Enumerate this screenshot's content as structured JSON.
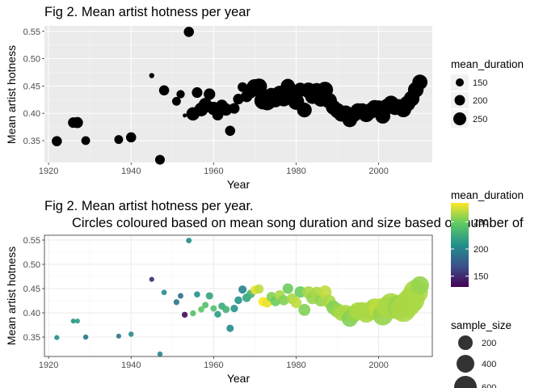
{
  "chart_data": [
    {
      "type": "scatter",
      "title": "Fig 2. Mean artist hotness per year",
      "xlabel": "Year",
      "ylabel": "Mean artist hotness",
      "xlim": [
        1919,
        2013
      ],
      "ylim": [
        0.31,
        0.56
      ],
      "xticks": [
        1920,
        1940,
        1960,
        1980,
        2000
      ],
      "yticks": [
        0.35,
        0.4,
        0.45,
        0.5,
        0.55
      ],
      "xtick_labels": [
        "1920",
        "1940",
        "1960",
        "1980",
        "2000"
      ],
      "ytick_labels": [
        "0.35",
        "0.40",
        "0.45",
        "0.50",
        "0.55"
      ],
      "theme": "grey panel with white grid",
      "legend": {
        "title": "mean_duration",
        "position": "right",
        "entries": [
          {
            "label": "150",
            "value": 150
          },
          {
            "label": "200",
            "value": 200
          },
          {
            "label": "250",
            "value": 250
          }
        ]
      },
      "points": [
        {
          "x": 1922,
          "y": 0.349,
          "duration": 205
        },
        {
          "x": 1926,
          "y": 0.383,
          "duration": 210
        },
        {
          "x": 1927,
          "y": 0.383,
          "duration": 215
        },
        {
          "x": 1929,
          "y": 0.35,
          "duration": 190
        },
        {
          "x": 1937,
          "y": 0.352,
          "duration": 190
        },
        {
          "x": 1940,
          "y": 0.356,
          "duration": 205
        },
        {
          "x": 1945,
          "y": 0.469,
          "duration": 150
        },
        {
          "x": 1947,
          "y": 0.315,
          "duration": 200
        },
        {
          "x": 1948,
          "y": 0.442,
          "duration": 205
        },
        {
          "x": 1951,
          "y": 0.422,
          "duration": 190
        },
        {
          "x": 1952,
          "y": 0.435,
          "duration": 185
        },
        {
          "x": 1953,
          "y": 0.396,
          "duration": 135
        },
        {
          "x": 1954,
          "y": 0.549,
          "duration": 205
        },
        {
          "x": 1955,
          "y": 0.399,
          "duration": 240
        },
        {
          "x": 1956,
          "y": 0.438,
          "duration": 210
        },
        {
          "x": 1957,
          "y": 0.407,
          "duration": 245
        },
        {
          "x": 1958,
          "y": 0.416,
          "duration": 240
        },
        {
          "x": 1959,
          "y": 0.435,
          "duration": 220
        },
        {
          "x": 1960,
          "y": 0.409,
          "duration": 240
        },
        {
          "x": 1961,
          "y": 0.397,
          "duration": 215
        },
        {
          "x": 1962,
          "y": 0.414,
          "duration": 225
        },
        {
          "x": 1963,
          "y": 0.407,
          "duration": 230
        },
        {
          "x": 1964,
          "y": 0.368,
          "duration": 205
        },
        {
          "x": 1965,
          "y": 0.409,
          "duration": 210
        },
        {
          "x": 1966,
          "y": 0.426,
          "duration": 210
        },
        {
          "x": 1967,
          "y": 0.448,
          "duration": 200
        },
        {
          "x": 1968,
          "y": 0.431,
          "duration": 220
        },
        {
          "x": 1969,
          "y": 0.439,
          "duration": 230
        },
        {
          "x": 1970,
          "y": 0.447,
          "duration": 280
        },
        {
          "x": 1971,
          "y": 0.449,
          "duration": 270
        },
        {
          "x": 1972,
          "y": 0.423,
          "duration": 285
        },
        {
          "x": 1973,
          "y": 0.421,
          "duration": 280
        },
        {
          "x": 1974,
          "y": 0.433,
          "duration": 255
        },
        {
          "x": 1975,
          "y": 0.424,
          "duration": 250
        },
        {
          "x": 1976,
          "y": 0.436,
          "duration": 265
        },
        {
          "x": 1977,
          "y": 0.426,
          "duration": 255
        },
        {
          "x": 1978,
          "y": 0.45,
          "duration": 250
        },
        {
          "x": 1979,
          "y": 0.429,
          "duration": 265
        },
        {
          "x": 1980,
          "y": 0.421,
          "duration": 270
        },
        {
          "x": 1981,
          "y": 0.443,
          "duration": 250
        },
        {
          "x": 1982,
          "y": 0.406,
          "duration": 255
        },
        {
          "x": 1983,
          "y": 0.442,
          "duration": 265
        },
        {
          "x": 1984,
          "y": 0.431,
          "duration": 260
        },
        {
          "x": 1985,
          "y": 0.441,
          "duration": 265
        },
        {
          "x": 1986,
          "y": 0.426,
          "duration": 260
        },
        {
          "x": 1987,
          "y": 0.443,
          "duration": 270
        },
        {
          "x": 1988,
          "y": 0.423,
          "duration": 265
        },
        {
          "x": 1989,
          "y": 0.411,
          "duration": 255
        },
        {
          "x": 1990,
          "y": 0.405,
          "duration": 260
        },
        {
          "x": 1991,
          "y": 0.399,
          "duration": 265
        },
        {
          "x": 1992,
          "y": 0.4,
          "duration": 265
        },
        {
          "x": 1993,
          "y": 0.388,
          "duration": 255
        },
        {
          "x": 1994,
          "y": 0.398,
          "duration": 260
        },
        {
          "x": 1995,
          "y": 0.404,
          "duration": 265
        },
        {
          "x": 1996,
          "y": 0.404,
          "duration": 265
        },
        {
          "x": 1997,
          "y": 0.398,
          "duration": 265
        },
        {
          "x": 1998,
          "y": 0.404,
          "duration": 265
        },
        {
          "x": 1999,
          "y": 0.41,
          "duration": 265
        },
        {
          "x": 2000,
          "y": 0.409,
          "duration": 270
        },
        {
          "x": 2001,
          "y": 0.395,
          "duration": 260
        },
        {
          "x": 2002,
          "y": 0.412,
          "duration": 265
        },
        {
          "x": 2003,
          "y": 0.418,
          "duration": 265
        },
        {
          "x": 2004,
          "y": 0.411,
          "duration": 265
        },
        {
          "x": 2005,
          "y": 0.412,
          "duration": 260
        },
        {
          "x": 2006,
          "y": 0.407,
          "duration": 265
        },
        {
          "x": 2007,
          "y": 0.418,
          "duration": 265
        },
        {
          "x": 2008,
          "y": 0.427,
          "duration": 265
        },
        {
          "x": 2009,
          "y": 0.443,
          "duration": 265
        },
        {
          "x": 2010,
          "y": 0.457,
          "duration": 260
        }
      ]
    },
    {
      "type": "scatter",
      "title": "Fig 2. Mean artist hotness per year.",
      "subtitle": "Circles coloured based on mean song duration and size based on number of",
      "xlabel": "Year",
      "ylabel": "Mean artist hotness",
      "xlim": [
        1919,
        2013
      ],
      "ylim": [
        0.31,
        0.56
      ],
      "xticks": [
        1920,
        1940,
        1960,
        1980,
        2000
      ],
      "yticks": [
        0.35,
        0.4,
        0.45,
        0.5,
        0.55
      ],
      "xtick_labels": [
        "1920",
        "1940",
        "1960",
        "1980",
        "2000"
      ],
      "ytick_labels": [
        "0.35",
        "0.40",
        "0.45",
        "0.50",
        "0.55"
      ],
      "theme": "white panel with light grey grid and border",
      "colorbar": {
        "title": "mean_duration",
        "range": [
          130,
          285
        ],
        "ticks": [
          150,
          200,
          250
        ],
        "tick_labels": [
          "150",
          "200",
          "250"
        ],
        "palette": "viridis"
      },
      "size_legend": {
        "title": "sample_size",
        "entries": [
          {
            "label": "200",
            "value": 200
          },
          {
            "label": "400",
            "value": 400
          },
          {
            "label": "600",
            "value": 600
          }
        ]
      },
      "points": [
        {
          "x": 1922,
          "y": 0.349,
          "duration": 205,
          "sample_size": 3
        },
        {
          "x": 1926,
          "y": 0.383,
          "duration": 210,
          "sample_size": 3
        },
        {
          "x": 1927,
          "y": 0.383,
          "duration": 215,
          "sample_size": 3
        },
        {
          "x": 1929,
          "y": 0.35,
          "duration": 190,
          "sample_size": 4
        },
        {
          "x": 1937,
          "y": 0.352,
          "duration": 190,
          "sample_size": 3
        },
        {
          "x": 1940,
          "y": 0.356,
          "duration": 205,
          "sample_size": 4
        },
        {
          "x": 1945,
          "y": 0.469,
          "duration": 150,
          "sample_size": 3
        },
        {
          "x": 1947,
          "y": 0.315,
          "duration": 200,
          "sample_size": 4
        },
        {
          "x": 1948,
          "y": 0.442,
          "duration": 205,
          "sample_size": 5
        },
        {
          "x": 1951,
          "y": 0.422,
          "duration": 190,
          "sample_size": 8
        },
        {
          "x": 1952,
          "y": 0.435,
          "duration": 185,
          "sample_size": 6
        },
        {
          "x": 1953,
          "y": 0.396,
          "duration": 135,
          "sample_size": 8
        },
        {
          "x": 1954,
          "y": 0.549,
          "duration": 205,
          "sample_size": 6
        },
        {
          "x": 1955,
          "y": 0.399,
          "duration": 240,
          "sample_size": 8
        },
        {
          "x": 1956,
          "y": 0.438,
          "duration": 210,
          "sample_size": 10
        },
        {
          "x": 1957,
          "y": 0.407,
          "duration": 245,
          "sample_size": 10
        },
        {
          "x": 1958,
          "y": 0.416,
          "duration": 240,
          "sample_size": 12
        },
        {
          "x": 1959,
          "y": 0.435,
          "duration": 220,
          "sample_size": 20
        },
        {
          "x": 1960,
          "y": 0.409,
          "duration": 240,
          "sample_size": 12
        },
        {
          "x": 1961,
          "y": 0.397,
          "duration": 215,
          "sample_size": 15
        },
        {
          "x": 1962,
          "y": 0.414,
          "duration": 225,
          "sample_size": 18
        },
        {
          "x": 1963,
          "y": 0.407,
          "duration": 230,
          "sample_size": 20
        },
        {
          "x": 1964,
          "y": 0.368,
          "duration": 205,
          "sample_size": 20
        },
        {
          "x": 1965,
          "y": 0.409,
          "duration": 210,
          "sample_size": 22
        },
        {
          "x": 1966,
          "y": 0.426,
          "duration": 210,
          "sample_size": 25
        },
        {
          "x": 1967,
          "y": 0.448,
          "duration": 200,
          "sample_size": 30
        },
        {
          "x": 1968,
          "y": 0.431,
          "duration": 220,
          "sample_size": 35
        },
        {
          "x": 1969,
          "y": 0.439,
          "duration": 230,
          "sample_size": 35
        },
        {
          "x": 1970,
          "y": 0.447,
          "duration": 280,
          "sample_size": 40
        },
        {
          "x": 1971,
          "y": 0.449,
          "duration": 270,
          "sample_size": 45
        },
        {
          "x": 1972,
          "y": 0.423,
          "duration": 285,
          "sample_size": 50
        },
        {
          "x": 1973,
          "y": 0.421,
          "duration": 280,
          "sample_size": 55
        },
        {
          "x": 1974,
          "y": 0.433,
          "duration": 255,
          "sample_size": 55
        },
        {
          "x": 1975,
          "y": 0.424,
          "duration": 250,
          "sample_size": 60
        },
        {
          "x": 1976,
          "y": 0.436,
          "duration": 265,
          "sample_size": 65
        },
        {
          "x": 1977,
          "y": 0.426,
          "duration": 255,
          "sample_size": 65
        },
        {
          "x": 1978,
          "y": 0.45,
          "duration": 250,
          "sample_size": 70
        },
        {
          "x": 1979,
          "y": 0.429,
          "duration": 265,
          "sample_size": 70
        },
        {
          "x": 1980,
          "y": 0.421,
          "duration": 270,
          "sample_size": 75
        },
        {
          "x": 1981,
          "y": 0.443,
          "duration": 250,
          "sample_size": 90
        },
        {
          "x": 1982,
          "y": 0.406,
          "duration": 255,
          "sample_size": 100
        },
        {
          "x": 1983,
          "y": 0.442,
          "duration": 265,
          "sample_size": 110
        },
        {
          "x": 1984,
          "y": 0.431,
          "duration": 260,
          "sample_size": 120
        },
        {
          "x": 1985,
          "y": 0.441,
          "duration": 265,
          "sample_size": 110
        },
        {
          "x": 1986,
          "y": 0.426,
          "duration": 260,
          "sample_size": 120
        },
        {
          "x": 1987,
          "y": 0.443,
          "duration": 270,
          "sample_size": 130
        },
        {
          "x": 1988,
          "y": 0.423,
          "duration": 265,
          "sample_size": 140
        },
        {
          "x": 1989,
          "y": 0.411,
          "duration": 255,
          "sample_size": 150
        },
        {
          "x": 1990,
          "y": 0.405,
          "duration": 260,
          "sample_size": 170
        },
        {
          "x": 1991,
          "y": 0.399,
          "duration": 265,
          "sample_size": 190
        },
        {
          "x": 1992,
          "y": 0.4,
          "duration": 265,
          "sample_size": 210
        },
        {
          "x": 1993,
          "y": 0.388,
          "duration": 255,
          "sample_size": 230
        },
        {
          "x": 1994,
          "y": 0.398,
          "duration": 260,
          "sample_size": 250
        },
        {
          "x": 1995,
          "y": 0.404,
          "duration": 265,
          "sample_size": 270
        },
        {
          "x": 1996,
          "y": 0.404,
          "duration": 265,
          "sample_size": 280
        },
        {
          "x": 1997,
          "y": 0.398,
          "duration": 265,
          "sample_size": 290
        },
        {
          "x": 1998,
          "y": 0.404,
          "duration": 265,
          "sample_size": 320
        },
        {
          "x": 1999,
          "y": 0.41,
          "duration": 265,
          "sample_size": 340
        },
        {
          "x": 2000,
          "y": 0.409,
          "duration": 270,
          "sample_size": 380
        },
        {
          "x": 2001,
          "y": 0.395,
          "duration": 260,
          "sample_size": 400
        },
        {
          "x": 2002,
          "y": 0.412,
          "duration": 265,
          "sample_size": 440
        },
        {
          "x": 2003,
          "y": 0.418,
          "duration": 265,
          "sample_size": 480
        },
        {
          "x": 2004,
          "y": 0.411,
          "duration": 265,
          "sample_size": 520
        },
        {
          "x": 2005,
          "y": 0.412,
          "duration": 260,
          "sample_size": 580
        },
        {
          "x": 2006,
          "y": 0.407,
          "duration": 265,
          "sample_size": 650
        },
        {
          "x": 2007,
          "y": 0.418,
          "duration": 265,
          "sample_size": 720
        },
        {
          "x": 2008,
          "y": 0.427,
          "duration": 265,
          "sample_size": 700
        },
        {
          "x": 2009,
          "y": 0.443,
          "duration": 265,
          "sample_size": 620
        },
        {
          "x": 2010,
          "y": 0.457,
          "duration": 260,
          "sample_size": 300
        }
      ]
    }
  ]
}
